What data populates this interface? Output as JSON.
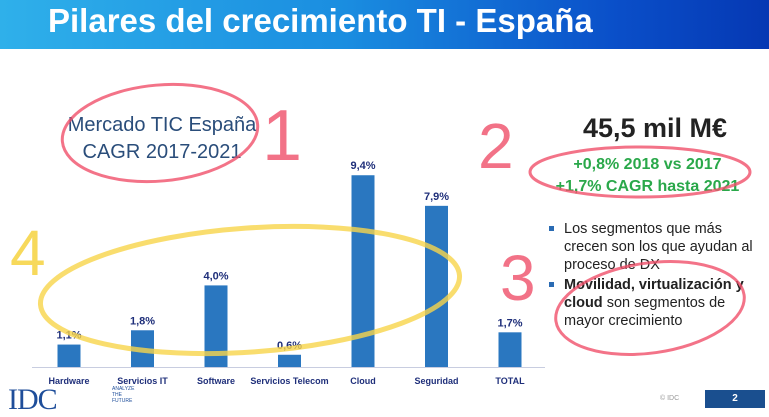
{
  "header": {
    "title": "Pilares del crecimiento TI - España"
  },
  "left_label": {
    "line1": "Mercado TIC España",
    "line2": "CAGR 2017-2021"
  },
  "right": {
    "headline": "45,5 mil M€",
    "growth1": "+0,8% 2018 vs 2017",
    "growth2": "+1,7% CAGR hasta 2021",
    "bullet1": "Los segmentos que más crecen son los que ayudan al proceso de DX",
    "bullet2_bold": "Movilidad, virtualización y cloud",
    "bullet2_rest": " son segmentos de mayor crecimiento"
  },
  "annotations": {
    "n1": "1",
    "n2": "2",
    "n3": "3",
    "n4": "4",
    "red": "#f0506a",
    "yellow": "#f7d54a"
  },
  "chart_data": {
    "type": "bar",
    "categories": [
      "Hardware",
      "Servicios IT",
      "Software",
      "Servicios Telecom",
      "Cloud",
      "Seguridad",
      "TOTAL"
    ],
    "values": [
      1.1,
      1.8,
      4.0,
      0.6,
      9.4,
      7.9,
      1.7
    ],
    "labels": [
      "1,1%",
      "1,8%",
      "4,0%",
      "0,6%",
      "9,4%",
      "7,9%",
      "1,7%"
    ],
    "bar_color": "#2a77c0",
    "label_color": "#1f2f7a",
    "ylim": [
      0,
      10
    ],
    "grid": false
  },
  "footer": {
    "logo": "IDC",
    "tagline": "ANALYZE THE FUTURE",
    "copyright": "© IDC",
    "page": "2"
  }
}
